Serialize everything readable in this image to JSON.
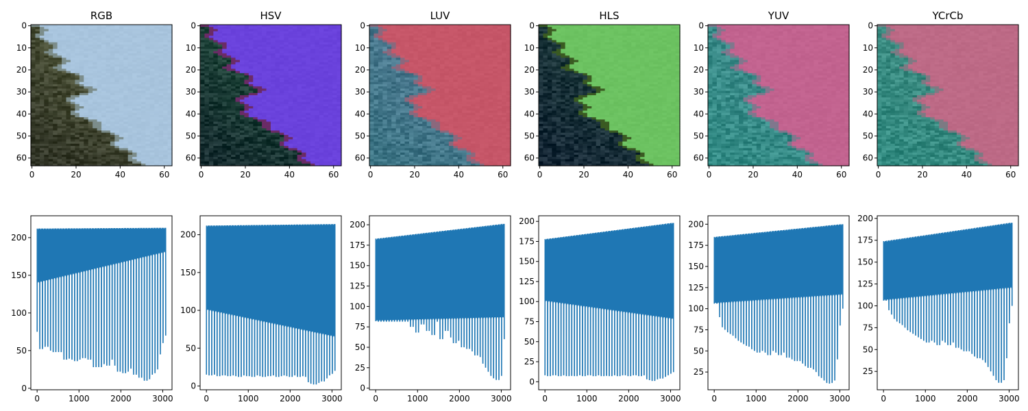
{
  "figure": {
    "background": "#ffffff",
    "line_color": "#1f77b4"
  },
  "chart_data": [
    {
      "type": "heatmap",
      "title": "RGB",
      "image_size": [
        64,
        64
      ],
      "xticks": [
        0,
        20,
        40,
        60
      ],
      "yticks": [
        0,
        10,
        20,
        30,
        40,
        50,
        60
      ],
      "colors": {
        "left": "#4f5538",
        "right": "#a8c4dd",
        "dark": "#1e201c"
      },
      "boundary_x": [
        2,
        5,
        9,
        12,
        14,
        22,
        26,
        18,
        20,
        26,
        36,
        38,
        44,
        50
      ]
    },
    {
      "type": "heatmap",
      "title": "HSV",
      "image_size": [
        64,
        64
      ],
      "xticks": [
        0,
        20,
        40,
        60
      ],
      "yticks": [
        0,
        10,
        20,
        30,
        40,
        50,
        60
      ],
      "colors": {
        "left": "#1f4a3a",
        "right": "#6a42dc",
        "dark": "#101828",
        "edge": "#6b2b66"
      },
      "boundary_x": [
        2,
        5,
        9,
        12,
        14,
        22,
        26,
        18,
        20,
        26,
        36,
        38,
        44,
        50
      ]
    },
    {
      "type": "heatmap",
      "title": "LUV",
      "image_size": [
        64,
        64
      ],
      "xticks": [
        0,
        20,
        40,
        60
      ],
      "yticks": [
        0,
        10,
        20,
        30,
        40,
        50,
        60
      ],
      "colors": {
        "left": "#4f7a92",
        "right": "#c65668",
        "dark": "#2f6f7a"
      },
      "boundary_x": [
        2,
        5,
        9,
        12,
        14,
        22,
        26,
        18,
        20,
        26,
        36,
        38,
        44,
        50
      ]
    },
    {
      "type": "heatmap",
      "title": "HLS",
      "image_size": [
        64,
        64
      ],
      "xticks": [
        0,
        20,
        40,
        60
      ],
      "yticks": [
        0,
        10,
        20,
        30,
        40,
        50,
        60
      ],
      "colors": {
        "left": "#1c3a3a",
        "right": "#6cc261",
        "dark": "#0e1830",
        "edge": "#3a5a22"
      },
      "boundary_x": [
        2,
        5,
        9,
        12,
        14,
        22,
        26,
        18,
        20,
        26,
        36,
        38,
        44,
        50
      ]
    },
    {
      "type": "heatmap",
      "title": "YUV",
      "image_size": [
        64,
        64
      ],
      "xticks": [
        0,
        20,
        40,
        60
      ],
      "yticks": [
        0,
        10,
        20,
        30,
        40,
        50,
        60
      ],
      "colors": {
        "left": "#3d8a8a",
        "right": "#c2638f",
        "dark": "#2a8a80"
      },
      "boundary_x": [
        2,
        5,
        9,
        12,
        14,
        22,
        26,
        18,
        20,
        26,
        36,
        38,
        44,
        50
      ]
    },
    {
      "type": "heatmap",
      "title": "YCrCb",
      "image_size": [
        64,
        64
      ],
      "xticks": [
        0,
        20,
        40,
        60
      ],
      "yticks": [
        0,
        10,
        20,
        30,
        40,
        50,
        60
      ],
      "colors": {
        "left": "#3d8a80",
        "right": "#bd6a86",
        "dark": "#2a8a80"
      },
      "boundary_x": [
        2,
        5,
        9,
        12,
        14,
        22,
        26,
        18,
        20,
        26,
        36,
        38,
        44,
        50
      ]
    },
    {
      "type": "line",
      "series_of": "RGB",
      "xlim": [
        -150,
        3222
      ],
      "ylim": [
        -2,
        229
      ],
      "xticks": [
        0,
        1000,
        2000,
        3000
      ],
      "yticks": [
        0,
        50,
        100,
        150,
        200
      ],
      "n_points": 3072,
      "period": 64,
      "upper_start": 212,
      "upper_end": 213,
      "band_start": 140,
      "band_end": 180,
      "dips": [
        75,
        52,
        55,
        58,
        55,
        50,
        48,
        52,
        48,
        50,
        38,
        40,
        40,
        38,
        36,
        38,
        42,
        40,
        42,
        38,
        40,
        28,
        30,
        28,
        32,
        34,
        30,
        38,
        40,
        30,
        22,
        24,
        20,
        22,
        28,
        26,
        18,
        22,
        14,
        15,
        10,
        12,
        18,
        20,
        25,
        45,
        60,
        70
      ]
    },
    {
      "type": "line",
      "series_of": "HSV",
      "xlim": [
        -150,
        3222
      ],
      "ylim": [
        -5,
        225
      ],
      "xticks": [
        0,
        1000,
        2000,
        3000
      ],
      "yticks": [
        0,
        50,
        100,
        150,
        200
      ],
      "n_points": 3072,
      "period": 64,
      "upper_start": 212,
      "upper_end": 214,
      "band_start": 100,
      "band_end": 65,
      "dips": [
        15,
        14,
        16,
        15,
        13,
        14,
        15,
        14,
        13,
        15,
        14,
        13,
        12,
        14,
        15,
        13,
        14,
        12,
        15,
        14,
        13,
        12,
        14,
        13,
        15,
        14,
        12,
        13,
        14,
        15,
        13,
        12,
        14,
        15,
        12,
        13,
        14,
        12,
        5,
        3,
        2,
        4,
        8,
        6,
        10,
        14,
        16,
        20
      ]
    },
    {
      "type": "line",
      "series_of": "LUV",
      "xlim": [
        -150,
        3222
      ],
      "ylim": [
        -2,
        211
      ],
      "xticks": [
        0,
        1000,
        2000,
        3000
      ],
      "yticks": [
        0,
        25,
        50,
        75,
        100,
        125,
        150,
        175,
        200
      ],
      "n_points": 3072,
      "period": 64,
      "upper_start": 183,
      "upper_end": 201,
      "band_start": 82,
      "band_end": 86,
      "dips": [
        82,
        82,
        82,
        82,
        82,
        82,
        82,
        82,
        82,
        82,
        82,
        82,
        82,
        75,
        82,
        68,
        82,
        78,
        82,
        70,
        82,
        65,
        82,
        82,
        60,
        82,
        70,
        82,
        62,
        55,
        58,
        60,
        50,
        55,
        48,
        52,
        45,
        40,
        45,
        38,
        30,
        25,
        20,
        15,
        12,
        10,
        15,
        60
      ]
    },
    {
      "type": "line",
      "series_of": "HLS",
      "xlim": [
        -150,
        3222
      ],
      "ylim": [
        -10,
        207
      ],
      "xticks": [
        0,
        1000,
        2000,
        3000
      ],
      "yticks": [
        0,
        25,
        50,
        75,
        100,
        125,
        150,
        175,
        200
      ],
      "n_points": 3072,
      "period": 64,
      "upper_start": 178,
      "upper_end": 198,
      "band_start": 100,
      "band_end": 78,
      "dips": [
        8,
        7,
        8,
        9,
        8,
        7,
        8,
        9,
        7,
        8,
        8,
        7,
        9,
        8,
        7,
        8,
        9,
        8,
        7,
        8,
        9,
        7,
        8,
        8,
        7,
        9,
        8,
        7,
        8,
        9,
        8,
        7,
        8,
        9,
        8,
        7,
        8,
        9,
        3,
        2,
        1,
        3,
        5,
        4,
        6,
        8,
        10,
        12
      ]
    },
    {
      "type": "line",
      "series_of": "YUV",
      "xlim": [
        -150,
        3222
      ],
      "ylim": [
        4,
        210
      ],
      "xticks": [
        0,
        1000,
        2000,
        3000
      ],
      "yticks": [
        25,
        50,
        75,
        100,
        125,
        150,
        175,
        200
      ],
      "n_points": 3072,
      "period": 64,
      "upper_start": 185,
      "upper_end": 200,
      "band_start": 106,
      "band_end": 116,
      "dips": [
        106,
        108,
        90,
        78,
        75,
        72,
        70,
        68,
        65,
        62,
        60,
        58,
        56,
        55,
        52,
        50,
        48,
        50,
        52,
        48,
        45,
        50,
        52,
        48,
        45,
        50,
        48,
        42,
        45,
        40,
        38,
        42,
        38,
        35,
        32,
        30,
        32,
        28,
        25,
        20,
        18,
        15,
        12,
        12,
        15,
        40,
        80,
        100
      ]
    },
    {
      "type": "line",
      "series_of": "YCrCb",
      "xlim": [
        -150,
        3222
      ],
      "ylim": [
        4,
        203
      ],
      "xticks": [
        0,
        1000,
        2000,
        3000
      ],
      "yticks": [
        25,
        50,
        75,
        100,
        125,
        150,
        175,
        200
      ],
      "n_points": 3072,
      "period": 64,
      "upper_start": 174,
      "upper_end": 195,
      "band_start": 106,
      "band_end": 120,
      "dips": [
        106,
        108,
        95,
        90,
        85,
        82,
        80,
        78,
        75,
        72,
        70,
        68,
        66,
        64,
        62,
        60,
        58,
        60,
        62,
        58,
        55,
        60,
        62,
        58,
        55,
        60,
        58,
        52,
        55,
        50,
        48,
        52,
        48,
        45,
        42,
        40,
        42,
        38,
        35,
        30,
        25,
        20,
        15,
        12,
        15,
        40,
        80,
        100
      ]
    }
  ]
}
